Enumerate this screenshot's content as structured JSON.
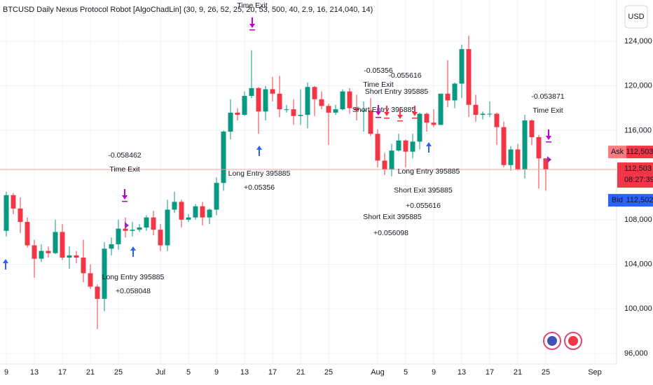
{
  "chart_data": {
    "type": "candlestick",
    "title": "BTCUSD Daily Nexus Protocol Robot [AlgoChadLin] (30, 9, 26, 52, 25, 20, 53, 500, 40, 2.9, 16, 214,040, 14)",
    "currency": "USD",
    "up_color": "#089981",
    "down_color": "#f23645",
    "categories": [
      "9",
      null,
      null,
      null,
      "13",
      null,
      null,
      null,
      "17",
      null,
      null,
      null,
      "21",
      null,
      null,
      null,
      "25",
      null,
      null,
      null,
      null,
      null,
      "Jul",
      null,
      null,
      null,
      "5",
      null,
      null,
      null,
      "9",
      null,
      null,
      null,
      "13",
      null,
      null,
      null,
      "17",
      null,
      null,
      null,
      "21",
      null,
      null,
      null,
      "25",
      null,
      null,
      null,
      null,
      null,
      null,
      "Aug",
      null,
      null,
      null,
      "5",
      null,
      null,
      null,
      "9",
      null,
      null,
      null,
      "13",
      null,
      null,
      null,
      "17",
      null,
      null,
      null,
      "21",
      null,
      null,
      null,
      "25",
      null,
      null,
      null,
      null,
      null,
      null,
      "Sep",
      null
    ],
    "open": [
      107000,
      110200,
      109000,
      107800,
      105700,
      104500,
      105200,
      105000,
      106900,
      104600,
      104800,
      104600,
      103200,
      102000,
      100900,
      105400,
      105800,
      107200,
      107000,
      107100,
      107300,
      108200,
      107100,
      105700,
      108900,
      109600,
      108000,
      108200,
      109200,
      108200,
      108900,
      111300,
      115900,
      117600,
      117400,
      119100,
      119800,
      117700,
      119700,
      119300,
      117900,
      117900,
      117300,
      117400,
      119900,
      118800,
      118200,
      117600,
      117900,
      119500,
      118000,
      117800,
      117800,
      115700,
      113300,
      112500,
      114200,
      115100,
      114100,
      115000,
      117500,
      116700,
      116500,
      119300,
      118700,
      120200,
      123300,
      118300,
      117400,
      117500,
      117500,
      116300,
      112900,
      114300,
      112500,
      116900,
      115400,
      113500,
      null,
      null,
      null,
      null,
      null,
      null,
      null,
      null
    ],
    "high": [
      110500,
      110400,
      110000,
      108200,
      106200,
      105800,
      105600,
      108000,
      107600,
      105600,
      105200,
      106200,
      104000,
      102200,
      106000,
      106400,
      108000,
      108200,
      107800,
      107600,
      108400,
      108800,
      107600,
      109800,
      110500,
      109800,
      108500,
      109400,
      109600,
      109000,
      111800,
      116000,
      118800,
      118000,
      119500,
      123200,
      119900,
      120000,
      120800,
      120900,
      118300,
      118800,
      119700,
      120300,
      120000,
      119500,
      118400,
      118300,
      119700,
      119800,
      119200,
      118600,
      118900,
      116100,
      114000,
      114800,
      115700,
      115200,
      115700,
      117600,
      117600,
      117900,
      119300,
      122300,
      120300,
      123700,
      124500,
      119200,
      117700,
      118600,
      117600,
      116800,
      114600,
      114800,
      117400,
      117000,
      115600,
      113500,
      null,
      null,
      null,
      null,
      null,
      null,
      null,
      null
    ],
    "low": [
      106500,
      108500,
      106800,
      105500,
      102800,
      104200,
      104600,
      104900,
      104400,
      103600,
      104100,
      102400,
      101800,
      98200,
      99800,
      104800,
      105300,
      106400,
      106500,
      106900,
      107000,
      106600,
      105200,
      105200,
      108600,
      107300,
      107800,
      108000,
      107500,
      107600,
      108400,
      110600,
      115200,
      116900,
      117300,
      118900,
      115700,
      116900,
      118600,
      117200,
      117600,
      116500,
      116500,
      116200,
      117300,
      117900,
      114700,
      117400,
      117800,
      117500,
      116900,
      115900,
      115500,
      112700,
      112000,
      111900,
      114100,
      112700,
      113500,
      114300,
      115900,
      116300,
      116500,
      118100,
      118000,
      118900,
      117200,
      116800,
      117000,
      117200,
      114700,
      112700,
      112400,
      112400,
      111700,
      114700,
      110800,
      110600,
      null,
      null,
      null,
      null,
      null,
      null,
      null,
      null
    ],
    "close": [
      110200,
      109000,
      107800,
      105700,
      104500,
      105200,
      105000,
      106900,
      104600,
      104800,
      104600,
      103200,
      102000,
      100900,
      105400,
      105800,
      107200,
      107000,
      107100,
      107300,
      108200,
      107100,
      105700,
      108900,
      109600,
      108000,
      108200,
      109200,
      108200,
      108900,
      111300,
      115900,
      117600,
      117400,
      119100,
      119800,
      117700,
      119700,
      119300,
      117900,
      117900,
      117300,
      117400,
      119900,
      118800,
      118200,
      117600,
      117900,
      119500,
      118000,
      117800,
      117800,
      115700,
      113300,
      112500,
      114200,
      115100,
      114100,
      115000,
      117500,
      116700,
      116500,
      119300,
      118700,
      120200,
      123300,
      118300,
      117400,
      117500,
      117500,
      116300,
      112900,
      114300,
      112500,
      116900,
      115400,
      113500,
      112500,
      null,
      null,
      null,
      null,
      null,
      null,
      null,
      null
    ],
    "ylim": [
      95060,
      127700
    ],
    "yticks": [
      {
        "value": 96000,
        "label": "96,000"
      },
      {
        "value": 100000,
        "label": "100,000"
      },
      {
        "value": 104000,
        "label": "104,000"
      },
      {
        "value": 108000,
        "label": "108,000"
      },
      {
        "value": 116000,
        "label": "116,000"
      },
      {
        "value": 120000,
        "label": "120,000"
      },
      {
        "value": 124000,
        "label": "124,000"
      }
    ],
    "grid": true,
    "ask": {
      "name": "Ask",
      "value": 112503,
      "label": "112,503"
    },
    "last": {
      "value": 112503,
      "label": "112,503",
      "countdown": "08:27:39"
    },
    "bid": {
      "name": "Bid",
      "value": 112502,
      "label": "112,502"
    },
    "annotations": [
      "Time Exit",
      "-0.058462",
      "Time Exit",
      "Long Entry 395885",
      "+0.05356",
      "Long Entry 395885",
      "+0.058048",
      "-0.05356",
      "Time Exit",
      "-0.055616",
      "Short Entry 395885",
      "Short Entry 395885",
      "Long Entry 395885",
      "Short Exit 395885",
      "+0.055616",
      "Short Exit 395885",
      "+0.056098",
      "-0.053871",
      "Time Exit"
    ]
  }
}
